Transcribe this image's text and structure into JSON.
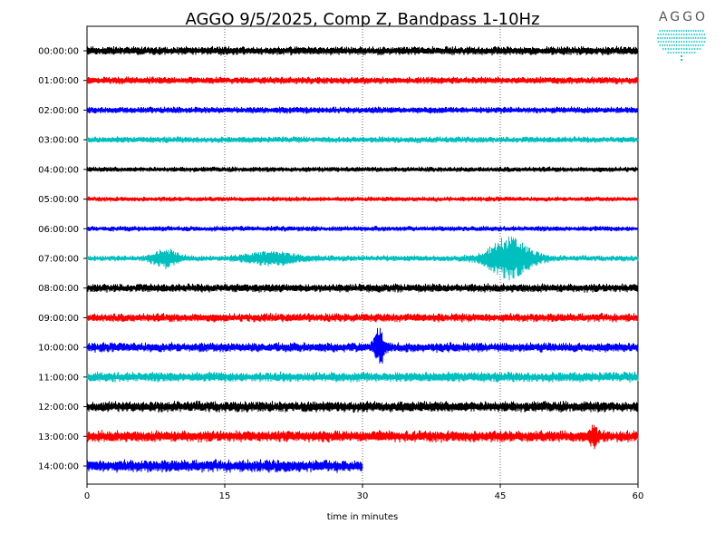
{
  "chart_data": {
    "type": "line",
    "title": "AGGO 9/5/2025, Comp Z, Bandpass 1-10Hz",
    "xlabel": "time in minutes",
    "ylabel": "",
    "xlim": [
      0,
      60
    ],
    "x_ticks": [
      "0",
      "15",
      "30",
      "45",
      "60"
    ],
    "x_tick_values": [
      0,
      15,
      30,
      45,
      60
    ],
    "grid": "vertical dotted lines at 15, 30, 45",
    "color_cycle": [
      "#000000",
      "#ff0000",
      "#0000ff",
      "#00bfbf"
    ],
    "series": [
      {
        "name": "00:00:00",
        "color": "#000000",
        "x_end": 60,
        "amplitude": 0.9
      },
      {
        "name": "01:00:00",
        "color": "#ff0000",
        "x_end": 60,
        "amplitude": 0.75
      },
      {
        "name": "02:00:00",
        "color": "#0000ff",
        "x_end": 60,
        "amplitude": 0.7
      },
      {
        "name": "03:00:00",
        "color": "#00bfbf",
        "x_end": 60,
        "amplitude": 0.65
      },
      {
        "name": "04:00:00",
        "color": "#000000",
        "x_end": 60,
        "amplitude": 0.55
      },
      {
        "name": "05:00:00",
        "color": "#ff0000",
        "x_end": 60,
        "amplitude": 0.5
      },
      {
        "name": "06:00:00",
        "color": "#0000ff",
        "x_end": 60,
        "amplitude": 0.55
      },
      {
        "name": "07:00:00",
        "color": "#00bfbf",
        "x_end": 60,
        "amplitude": 0.6,
        "events": [
          {
            "t": 8.5,
            "amp": 1.8,
            "width": 1.5
          },
          {
            "t": 46,
            "amp": 4.5,
            "width": 2.5
          },
          {
            "t": 20,
            "amp": 1.2,
            "width": 3
          }
        ]
      },
      {
        "name": "08:00:00",
        "color": "#000000",
        "x_end": 60,
        "amplitude": 0.9
      },
      {
        "name": "09:00:00",
        "color": "#ff0000",
        "x_end": 60,
        "amplitude": 0.9
      },
      {
        "name": "10:00:00",
        "color": "#0000ff",
        "x_end": 60,
        "amplitude": 1.0,
        "events": [
          {
            "t": 31.8,
            "amp": 3.5,
            "width": 0.6
          }
        ]
      },
      {
        "name": "11:00:00",
        "color": "#00bfbf",
        "x_end": 60,
        "amplitude": 1.05
      },
      {
        "name": "12:00:00",
        "color": "#000000",
        "x_end": 60,
        "amplitude": 1.15
      },
      {
        "name": "13:00:00",
        "color": "#ff0000",
        "x_end": 60,
        "amplitude": 1.2,
        "events": [
          {
            "t": 55.2,
            "amp": 2.5,
            "width": 0.4
          }
        ]
      },
      {
        "name": "14:00:00",
        "color": "#0000ff",
        "x_end": 30,
        "amplitude": 1.3
      }
    ]
  },
  "logo": {
    "text": "AGGO",
    "color": "#00bfbf"
  }
}
